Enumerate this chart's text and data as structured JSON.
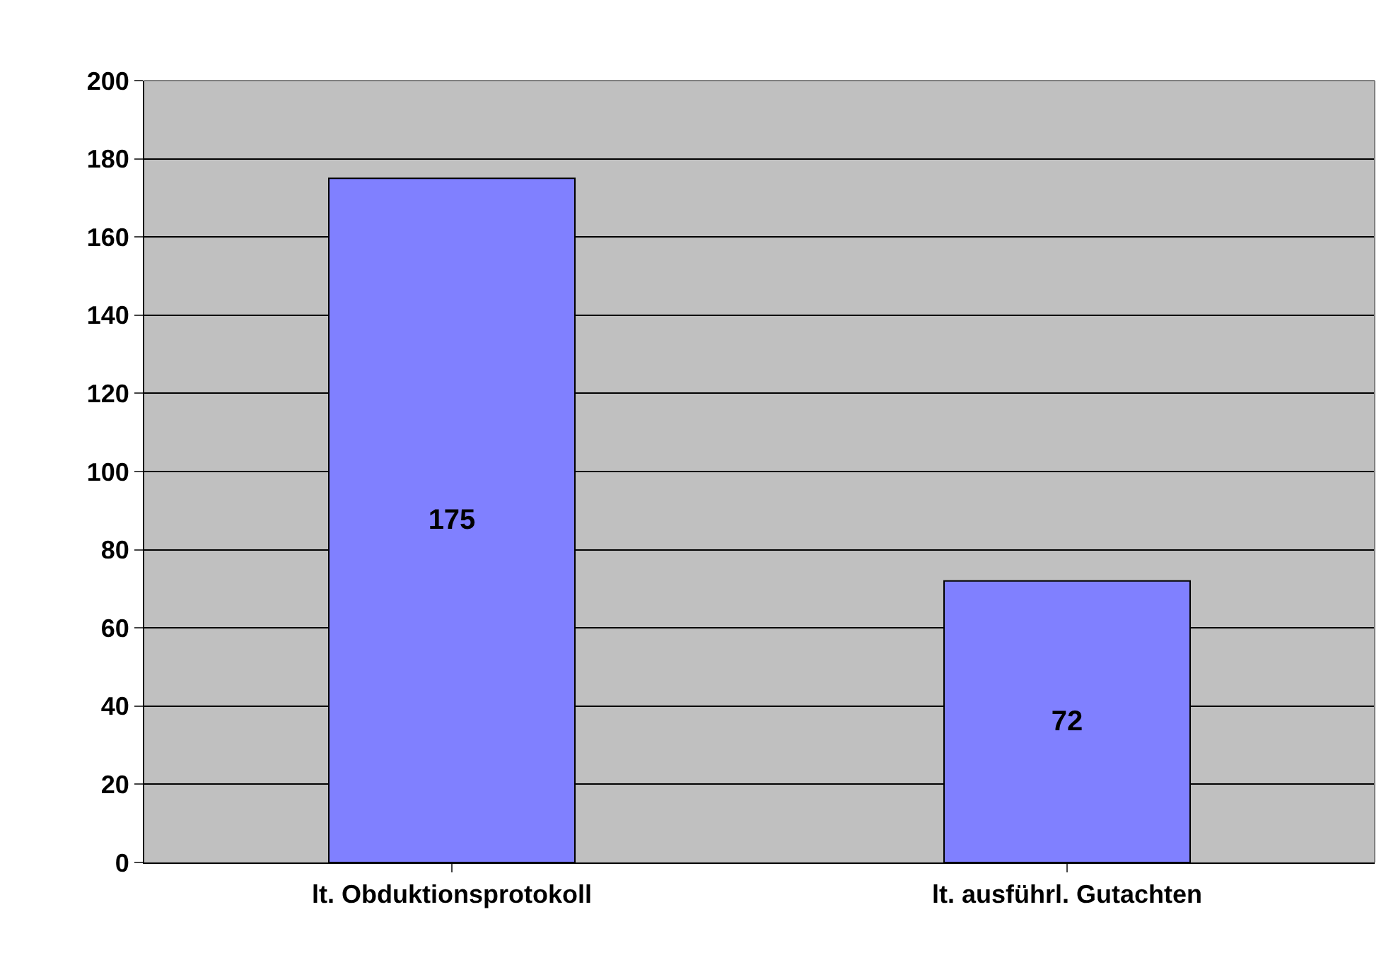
{
  "chart_data": {
    "type": "bar",
    "categories": [
      "lt. Obduktionsprotokoll",
      "lt. ausführl. Gutachten"
    ],
    "values": [
      175,
      72
    ],
    "color": "#8080ff",
    "ylim": [
      0,
      200
    ],
    "yticks": [
      0,
      20,
      40,
      60,
      80,
      100,
      120,
      140,
      160,
      180,
      200
    ],
    "grid": "y",
    "data_labels": true
  }
}
